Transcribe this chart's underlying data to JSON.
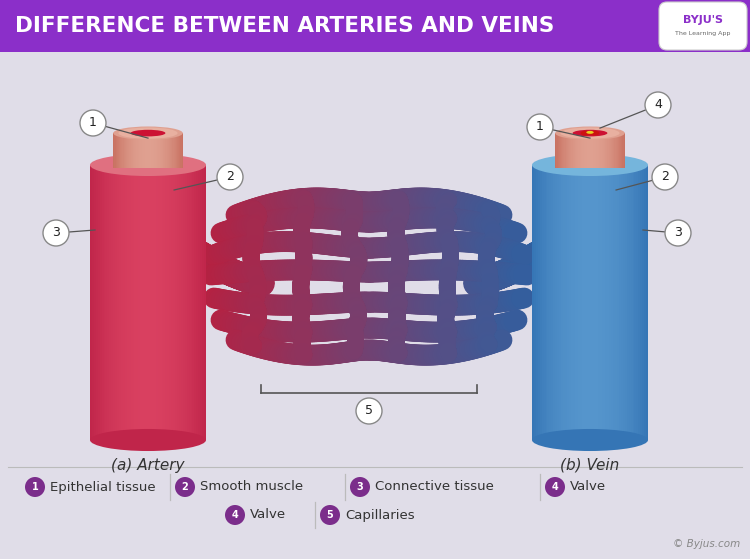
{
  "title": "DIFFERENCE BETWEEN ARTERIES AND VEINS",
  "title_bg": "#8B2FC9",
  "title_color": "#FFFFFF",
  "bg_color": "#E0DDE8",
  "legend_items_row1": [
    {
      "num": "1",
      "label": "Epithelial tissue"
    },
    {
      "num": "2",
      "label": "Smooth muscle"
    },
    {
      "num": "3",
      "label": "Connective tissue"
    },
    {
      "num": "4",
      "label": "Valve"
    }
  ],
  "legend_items_row2": [
    {
      "num": "4",
      "label": "Valve"
    },
    {
      "num": "5",
      "label": "Capillaries"
    }
  ],
  "legend_circle_color": "#7B2D8B",
  "legend_text_color": "#333333",
  "artery_label": "(a) Artery",
  "vein_label": "(b) Vein",
  "artery_red": "#C0254A",
  "artery_mid": "#D94060",
  "artery_light": "#E07080",
  "vein_blue": "#3575B5",
  "vein_mid": "#5595CC",
  "vein_light": "#75B5DC",
  "cap_red": "#B82040",
  "cap_blue": "#3060A0",
  "separator_color": "#BBBBBB",
  "copyright": "© Byjus.com"
}
